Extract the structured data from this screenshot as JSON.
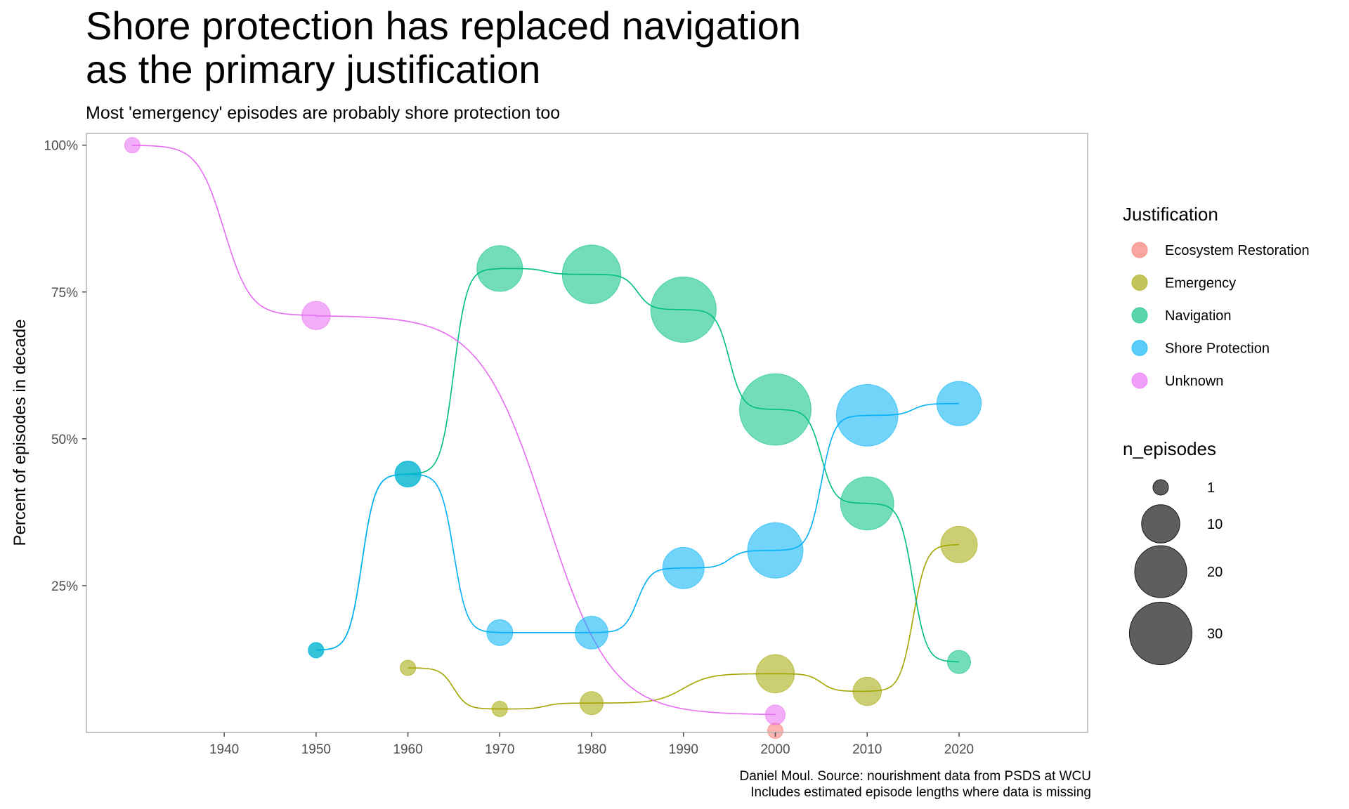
{
  "chart_data": {
    "type": "line",
    "title": "Shore protection has replaced navigation\nas the primary justification",
    "subtitle": "Most 'emergency' episodes are probably shore protection too",
    "caption_line1": "Daniel Moul. Source: nourishment data from PSDS at WCU",
    "caption_line2": "Includes estimated episode lengths where data is missing",
    "xlabel": "",
    "ylabel": "Percent of episodes in decade",
    "xlim": [
      1925,
      2034
    ],
    "ylim": [
      0.0,
      1.02
    ],
    "x_ticks": [
      1940,
      1950,
      1960,
      1970,
      1980,
      1990,
      2000,
      2010,
      2020
    ],
    "y_ticks": [
      {
        "value": 0.25,
        "label": "25%"
      },
      {
        "value": 0.5,
        "label": "50%"
      },
      {
        "value": 0.75,
        "label": "75%"
      },
      {
        "value": 1.0,
        "label": "100%"
      }
    ],
    "grid": false,
    "legend_position": "right",
    "color_legend_title": "Justification",
    "size_legend_title": "n_episodes",
    "size_legend": [
      {
        "value": 1,
        "label": "1"
      },
      {
        "value": 10,
        "label": "10"
      },
      {
        "value": 20,
        "label": "20"
      },
      {
        "value": 30,
        "label": "30"
      }
    ],
    "series": [
      {
        "name": "Ecosystem Restoration",
        "color": "#F8766D",
        "points": [
          {
            "x": 2000,
            "y": 0.003,
            "n": 1
          }
        ]
      },
      {
        "name": "Emergency",
        "color": "#A3A500",
        "points": [
          {
            "x": 1960,
            "y": 0.11,
            "n": 1
          },
          {
            "x": 1970,
            "y": 0.04,
            "n": 1
          },
          {
            "x": 1980,
            "y": 0.05,
            "n": 3
          },
          {
            "x": 2000,
            "y": 0.1,
            "n": 10
          },
          {
            "x": 2010,
            "y": 0.07,
            "n": 5
          },
          {
            "x": 2020,
            "y": 0.32,
            "n": 9
          }
        ]
      },
      {
        "name": "Navigation",
        "color": "#00BF7D",
        "points": [
          {
            "x": 1950,
            "y": 0.14,
            "n": 1
          },
          {
            "x": 1960,
            "y": 0.44,
            "n": 4
          },
          {
            "x": 1970,
            "y": 0.79,
            "n": 15
          },
          {
            "x": 1980,
            "y": 0.78,
            "n": 26
          },
          {
            "x": 1990,
            "y": 0.72,
            "n": 33
          },
          {
            "x": 2000,
            "y": 0.55,
            "n": 40
          },
          {
            "x": 2010,
            "y": 0.39,
            "n": 21
          },
          {
            "x": 2020,
            "y": 0.12,
            "n": 3
          }
        ]
      },
      {
        "name": "Shore Protection",
        "color": "#00B0F6",
        "points": [
          {
            "x": 1950,
            "y": 0.14,
            "n": 1
          },
          {
            "x": 1960,
            "y": 0.44,
            "n": 4
          },
          {
            "x": 1970,
            "y": 0.17,
            "n": 4
          },
          {
            "x": 1980,
            "y": 0.17,
            "n": 7
          },
          {
            "x": 1990,
            "y": 0.28,
            "n": 12
          },
          {
            "x": 2000,
            "y": 0.31,
            "n": 23
          },
          {
            "x": 2010,
            "y": 0.54,
            "n": 29
          },
          {
            "x": 2020,
            "y": 0.56,
            "n": 14
          }
        ]
      },
      {
        "name": "Unknown",
        "color": "#E76BF3",
        "points": [
          {
            "x": 1930,
            "y": 1.0,
            "n": 1
          },
          {
            "x": 1950,
            "y": 0.71,
            "n": 5
          },
          {
            "x": 2000,
            "y": 0.03,
            "n": 2
          }
        ]
      }
    ]
  }
}
